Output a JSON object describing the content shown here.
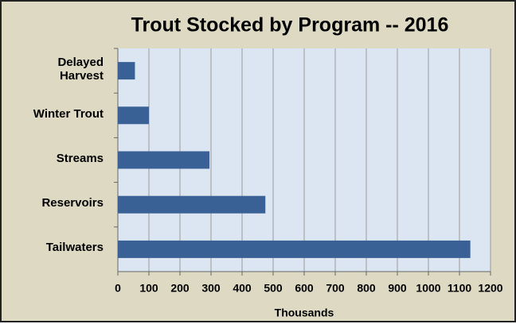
{
  "chart_data": {
    "type": "bar",
    "orientation": "horizontal",
    "title": "Trout Stocked by Program -- 2016",
    "categories": [
      "Delayed Harvest",
      "Winter Trout",
      "Streams",
      "Reservoirs",
      "Tailwaters"
    ],
    "values": [
      55,
      100,
      295,
      475,
      1135
    ],
    "color": "#3a6195",
    "xlabel": "Thousands",
    "xlim": [
      0,
      1200
    ],
    "xticks": [
      0,
      100,
      200,
      300,
      400,
      500,
      600,
      700,
      800,
      900,
      1000,
      1100,
      1200
    ],
    "grid": true
  }
}
